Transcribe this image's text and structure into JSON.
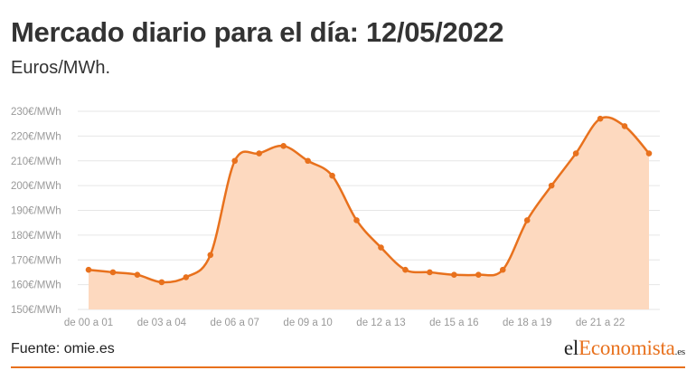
{
  "header": {
    "title": "Mercado diario para el día: 12/05/2022",
    "subtitle": "Euros/MWh."
  },
  "footer": {
    "source": "Fuente: omie.es",
    "logo": {
      "part1": "el",
      "part2": "Economista",
      "part3": ".es"
    }
  },
  "colors": {
    "line": "#e8711d",
    "area": "#fdd9bf",
    "grid": "#e6e6e6",
    "axis_text": "#999999",
    "brand": "#e8711d"
  },
  "chart_data": {
    "type": "area",
    "categories": [
      "de 00 a 01",
      "de 01 a 02",
      "de 02 a 03",
      "de 03 a 04",
      "de 04 a 05",
      "de 05 a 06",
      "de 06 a 07",
      "de 07 a 08",
      "de 08 a 09",
      "de 09 a 10",
      "de 10 a 11",
      "de 11 a 12",
      "de 12 a 13",
      "de 13 a 14",
      "de 14 a 15",
      "de 15 a 16",
      "de 16 a 17",
      "de 17 a 18",
      "de 18 a 19",
      "de 19 a 20",
      "de 20 a 21",
      "de 21 a 22",
      "de 22 a 23",
      "de 23 a 24"
    ],
    "x_tick_labels": [
      "de 00 a 01",
      "de 03 a 04",
      "de 06 a 07",
      "de 09 a 10",
      "de 12 a 13",
      "de 15 a 16",
      "de 18 a 19",
      "de 21 a 22"
    ],
    "values": [
      166,
      165,
      164,
      161,
      163,
      172,
      210,
      213,
      216,
      210,
      204,
      186,
      175,
      166,
      165,
      164,
      164,
      166,
      186,
      200,
      213,
      227,
      224,
      213
    ],
    "ylim": [
      150,
      230
    ],
    "y_ticks": [
      150,
      160,
      170,
      180,
      190,
      200,
      210,
      220,
      230
    ],
    "y_tick_suffix": "€/MWh",
    "grid": true,
    "legend": "none"
  }
}
